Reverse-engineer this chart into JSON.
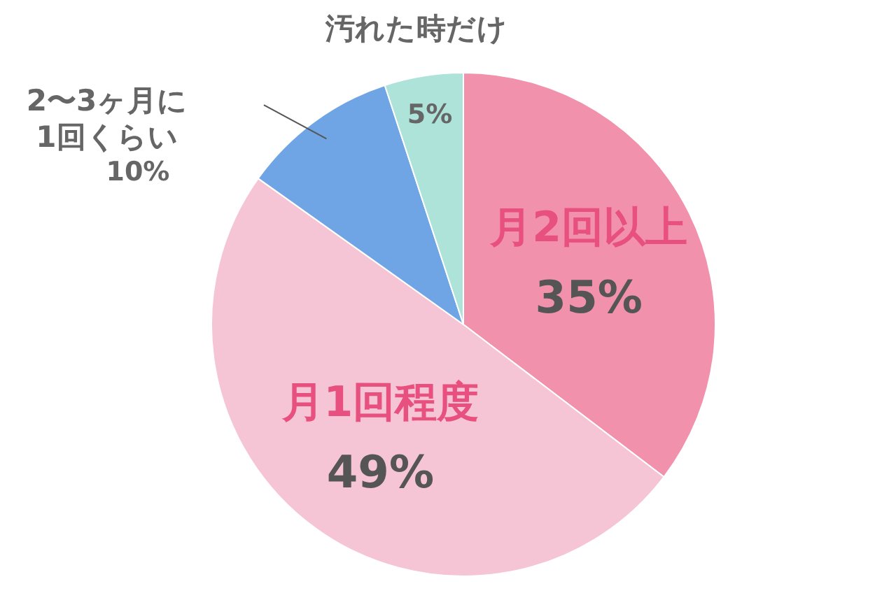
{
  "chart_data": {
    "type": "pie",
    "categories": [
      "月2回以上",
      "月1回程度",
      "2〜3ヶ月に\n1回くらい",
      "汚れた時だけ"
    ],
    "values": [
      35,
      49,
      10,
      5
    ],
    "value_labels": [
      "35%",
      "49%",
      "10%",
      "5%"
    ],
    "colors": [
      "#f191ab",
      "#f6c5d5",
      "#6fa5e4",
      "#aee3d9"
    ]
  }
}
